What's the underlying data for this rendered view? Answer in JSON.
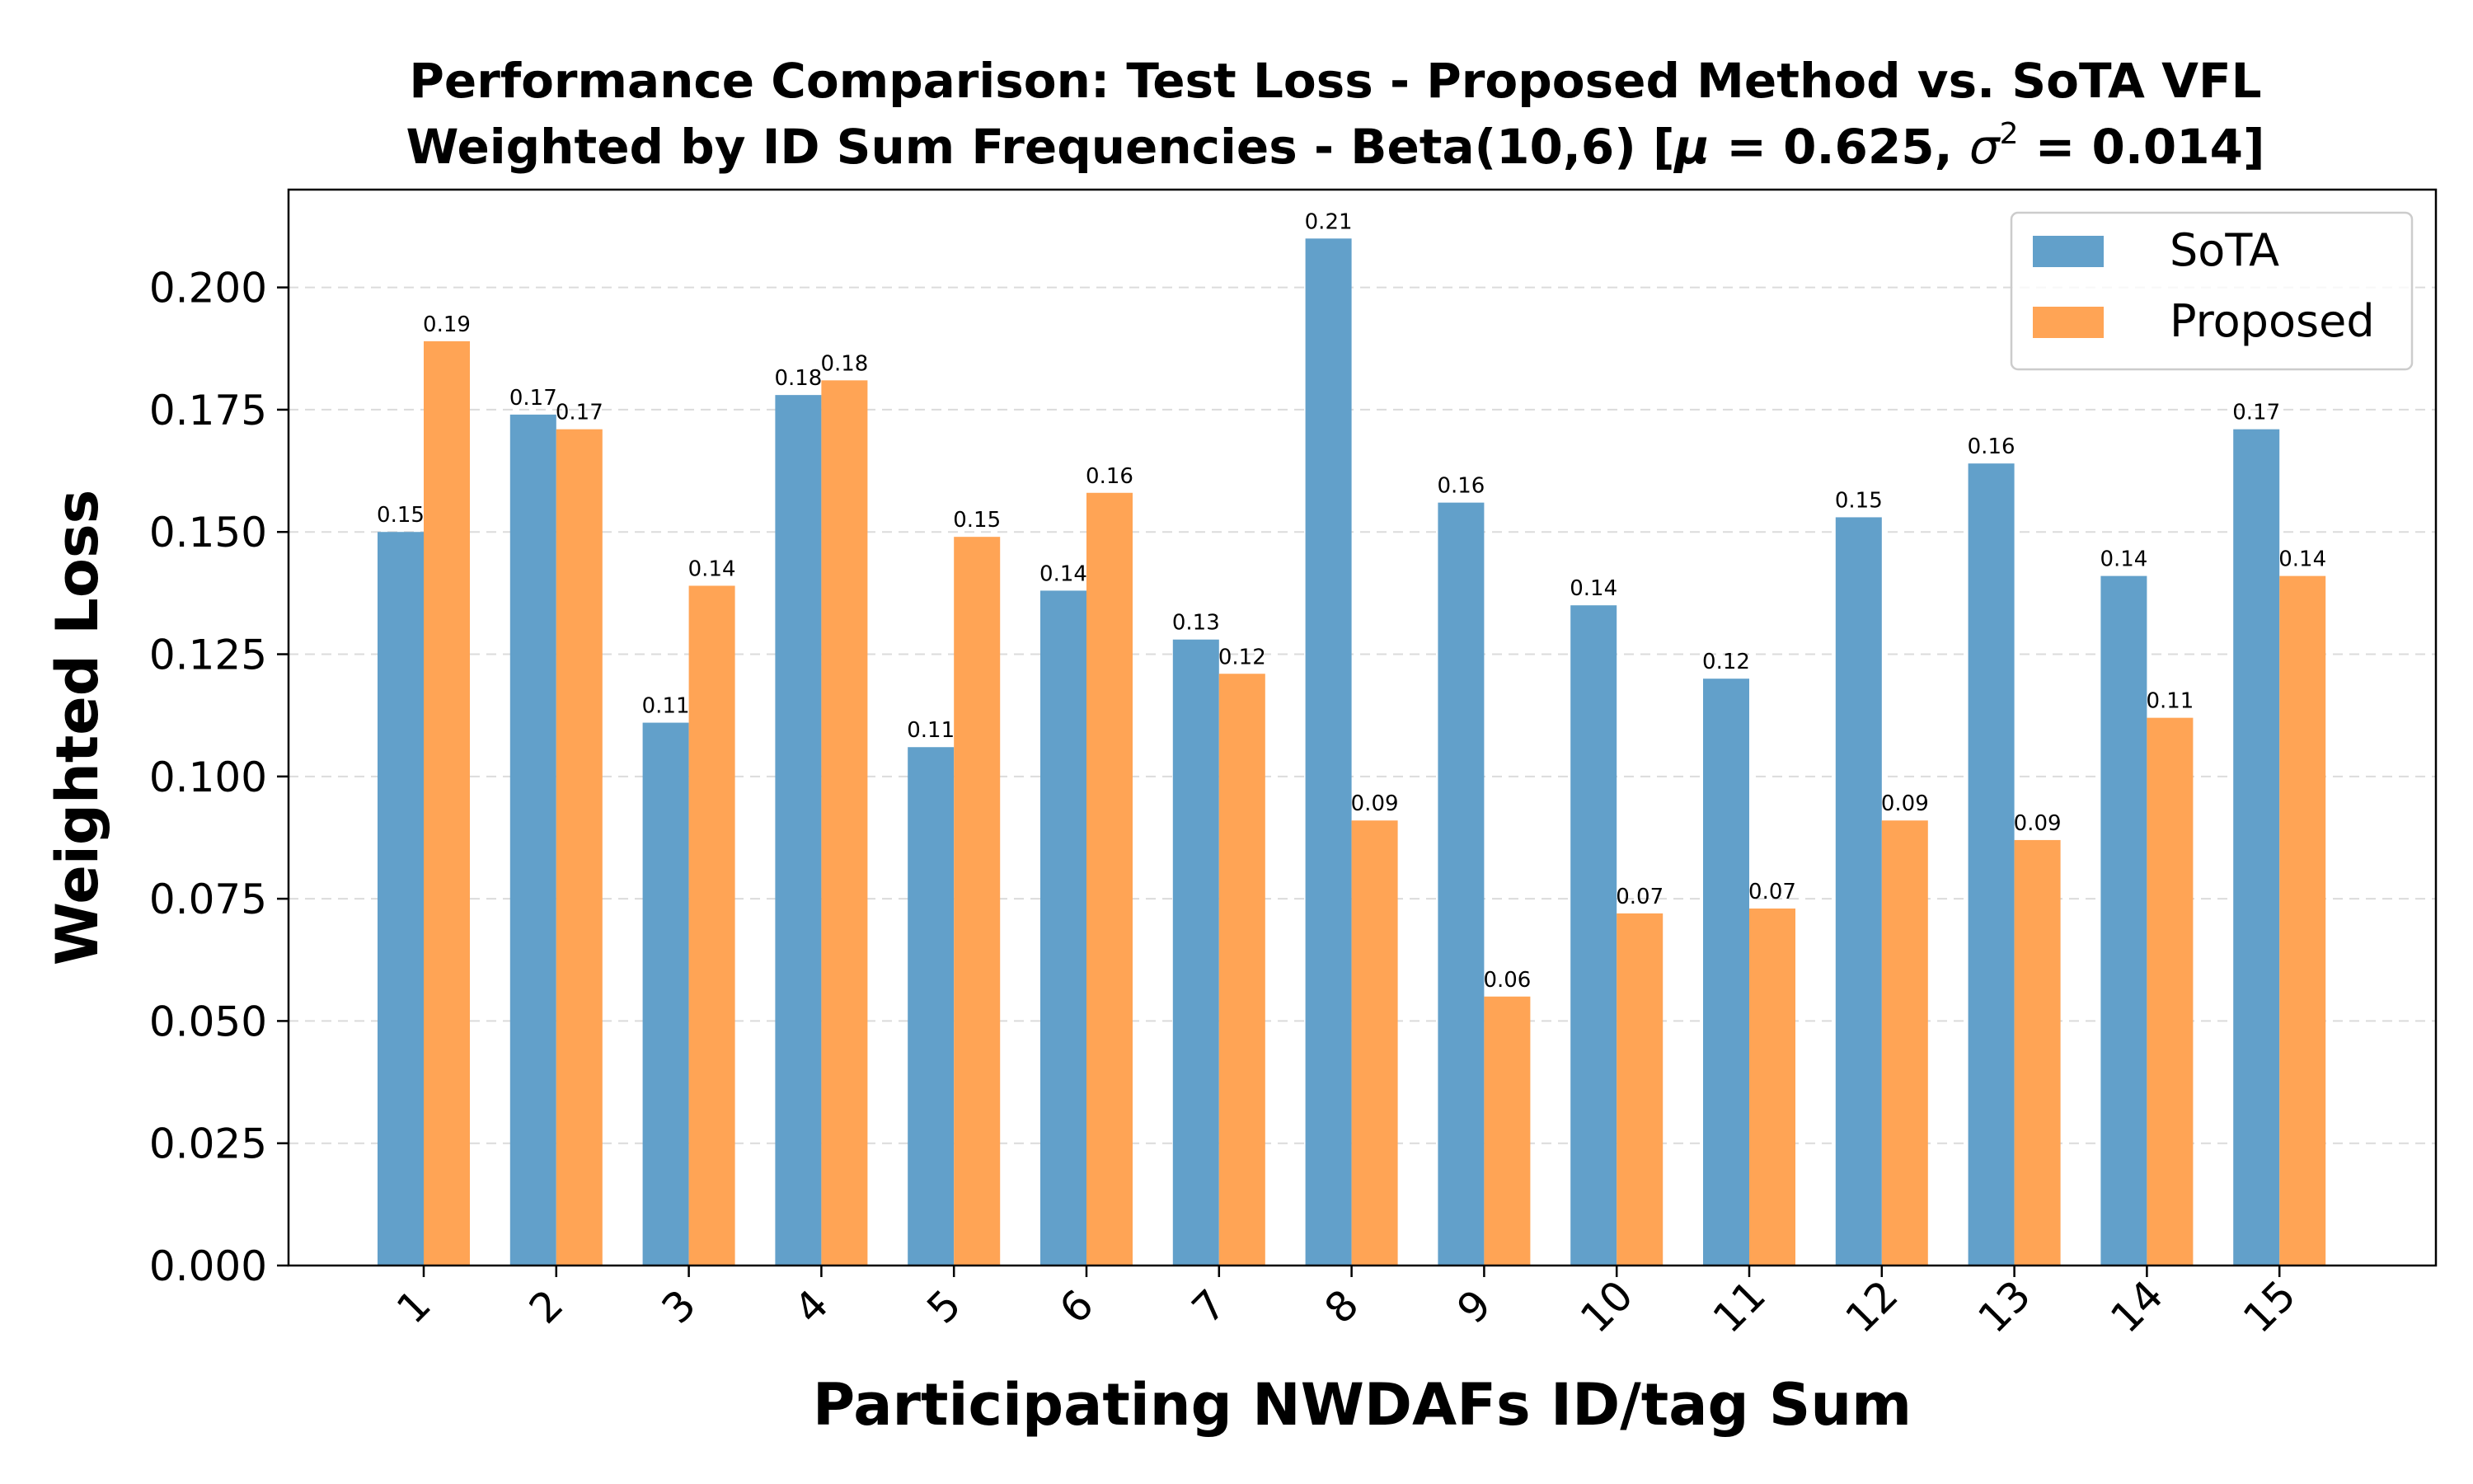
{
  "chart_data": {
    "type": "bar",
    "title_line1": "Performance Comparison: Test Loss - Proposed Method vs. SoTA VFL",
    "title_line2_prefix": "Weighted by ID Sum Frequencies - Beta(10,6) [",
    "title_mu_symbol": "μ",
    "title_mu_value": " = 0.625, ",
    "title_sigma_symbol": "σ",
    "title_sigma_exponent": "2",
    "title_sigma_value": " = 0.014]",
    "xlabel": "Participating NWDAFs ID/tag Sum",
    "ylabel": "Weighted Loss",
    "ylim": [
      0,
      0.22
    ],
    "yticks": [
      "0.000",
      "0.025",
      "0.050",
      "0.075",
      "0.100",
      "0.125",
      "0.150",
      "0.175",
      "0.200"
    ],
    "ytick_values": [
      0,
      0.025,
      0.05,
      0.075,
      0.1,
      0.125,
      0.15,
      0.175,
      0.2
    ],
    "categories": [
      "1",
      "2",
      "3",
      "4",
      "5",
      "6",
      "7",
      "8",
      "9",
      "10",
      "11",
      "12",
      "13",
      "14",
      "15"
    ],
    "grid": "y-dashed",
    "legend_position": "top-right",
    "series": [
      {
        "name": "SoTA",
        "color": "#62a0ca",
        "values": [
          0.15,
          0.174,
          0.111,
          0.178,
          0.106,
          0.138,
          0.128,
          0.21,
          0.156,
          0.135,
          0.12,
          0.153,
          0.164,
          0.141,
          0.171
        ],
        "labels": [
          "0.15",
          "0.17",
          "0.11",
          "0.18",
          "0.11",
          "0.14",
          "0.13",
          "0.21",
          "0.16",
          "0.14",
          "0.12",
          "0.15",
          "0.16",
          "0.14",
          "0.17"
        ]
      },
      {
        "name": "Proposed",
        "color": "#ffa455",
        "values": [
          0.189,
          0.171,
          0.139,
          0.181,
          0.149,
          0.158,
          0.121,
          0.091,
          0.055,
          0.072,
          0.073,
          0.091,
          0.087,
          0.112,
          0.141
        ],
        "labels": [
          "0.19",
          "0.17",
          "0.14",
          "0.18",
          "0.15",
          "0.16",
          "0.12",
          "0.09",
          "0.06",
          "0.07",
          "0.07",
          "0.09",
          "0.09",
          "0.11",
          "0.14"
        ]
      }
    ]
  }
}
